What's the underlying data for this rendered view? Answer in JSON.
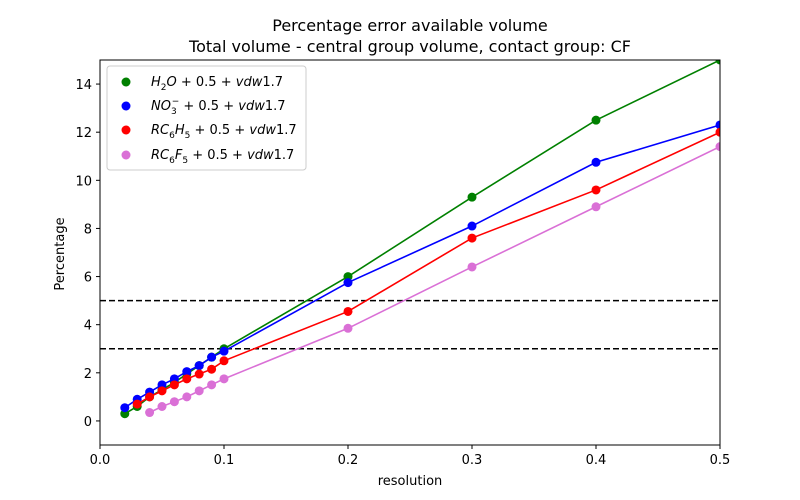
{
  "chart_data": {
    "type": "line",
    "title": "Percentage error available volume",
    "subtitle": "Total volume - central group volume, contact group: CF",
    "xlabel": "resolution",
    "ylabel": "Percentage",
    "xlim": [
      0.0,
      0.5
    ],
    "ylim": [
      -1,
      15
    ],
    "xticks": [
      0.0,
      0.1,
      0.2,
      0.3,
      0.4,
      0.5
    ],
    "xtick_labels": [
      "0.0",
      "0.1",
      "0.2",
      "0.3",
      "0.4",
      "0.5"
    ],
    "yticks": [
      0,
      2,
      4,
      6,
      8,
      10,
      12,
      14
    ],
    "ytick_labels": [
      "0",
      "2",
      "4",
      "6",
      "8",
      "10",
      "12",
      "14"
    ],
    "grid": false,
    "legend_position": "top-left",
    "reference_lines": [
      {
        "y": 5,
        "style": "dashed",
        "color": "#000000"
      },
      {
        "y": 3,
        "style": "dashed",
        "color": "#000000"
      }
    ],
    "series": [
      {
        "name": "H2O + 0.5 + vdw1.7",
        "color": "#008000",
        "x": [
          0.02,
          0.03,
          0.04,
          0.05,
          0.06,
          0.07,
          0.08,
          0.09,
          0.1,
          0.2,
          0.3,
          0.4,
          0.5
        ],
        "y": [
          0.3,
          0.6,
          1.0,
          1.3,
          1.6,
          1.95,
          2.3,
          2.65,
          3.0,
          6.0,
          9.3,
          12.5,
          15.0
        ]
      },
      {
        "name": "NO3- + 0.5 + vdw1.7",
        "color": "#0000ff",
        "x": [
          0.02,
          0.03,
          0.04,
          0.05,
          0.06,
          0.07,
          0.08,
          0.09,
          0.1,
          0.2,
          0.3,
          0.4,
          0.5
        ],
        "y": [
          0.55,
          0.9,
          1.2,
          1.5,
          1.75,
          2.05,
          2.3,
          2.65,
          2.9,
          5.75,
          8.1,
          10.75,
          12.3
        ]
      },
      {
        "name": "RC6H5 + 0.5 + vdw1.7",
        "color": "#ff0000",
        "x": [
          0.03,
          0.04,
          0.05,
          0.06,
          0.07,
          0.08,
          0.09,
          0.1,
          0.2,
          0.3,
          0.4,
          0.5
        ],
        "y": [
          0.7,
          1.0,
          1.25,
          1.5,
          1.75,
          1.95,
          2.15,
          2.5,
          4.55,
          7.6,
          9.6,
          12.0
        ]
      },
      {
        "name": "RC6F5 + 0.5 + vdw1.7",
        "color": "#da70d6",
        "x": [
          0.04,
          0.05,
          0.06,
          0.07,
          0.08,
          0.09,
          0.1,
          0.2,
          0.3,
          0.4,
          0.5
        ],
        "y": [
          0.35,
          0.6,
          0.8,
          1.0,
          1.25,
          1.5,
          1.75,
          3.85,
          6.4,
          8.9,
          11.4
        ]
      }
    ]
  }
}
